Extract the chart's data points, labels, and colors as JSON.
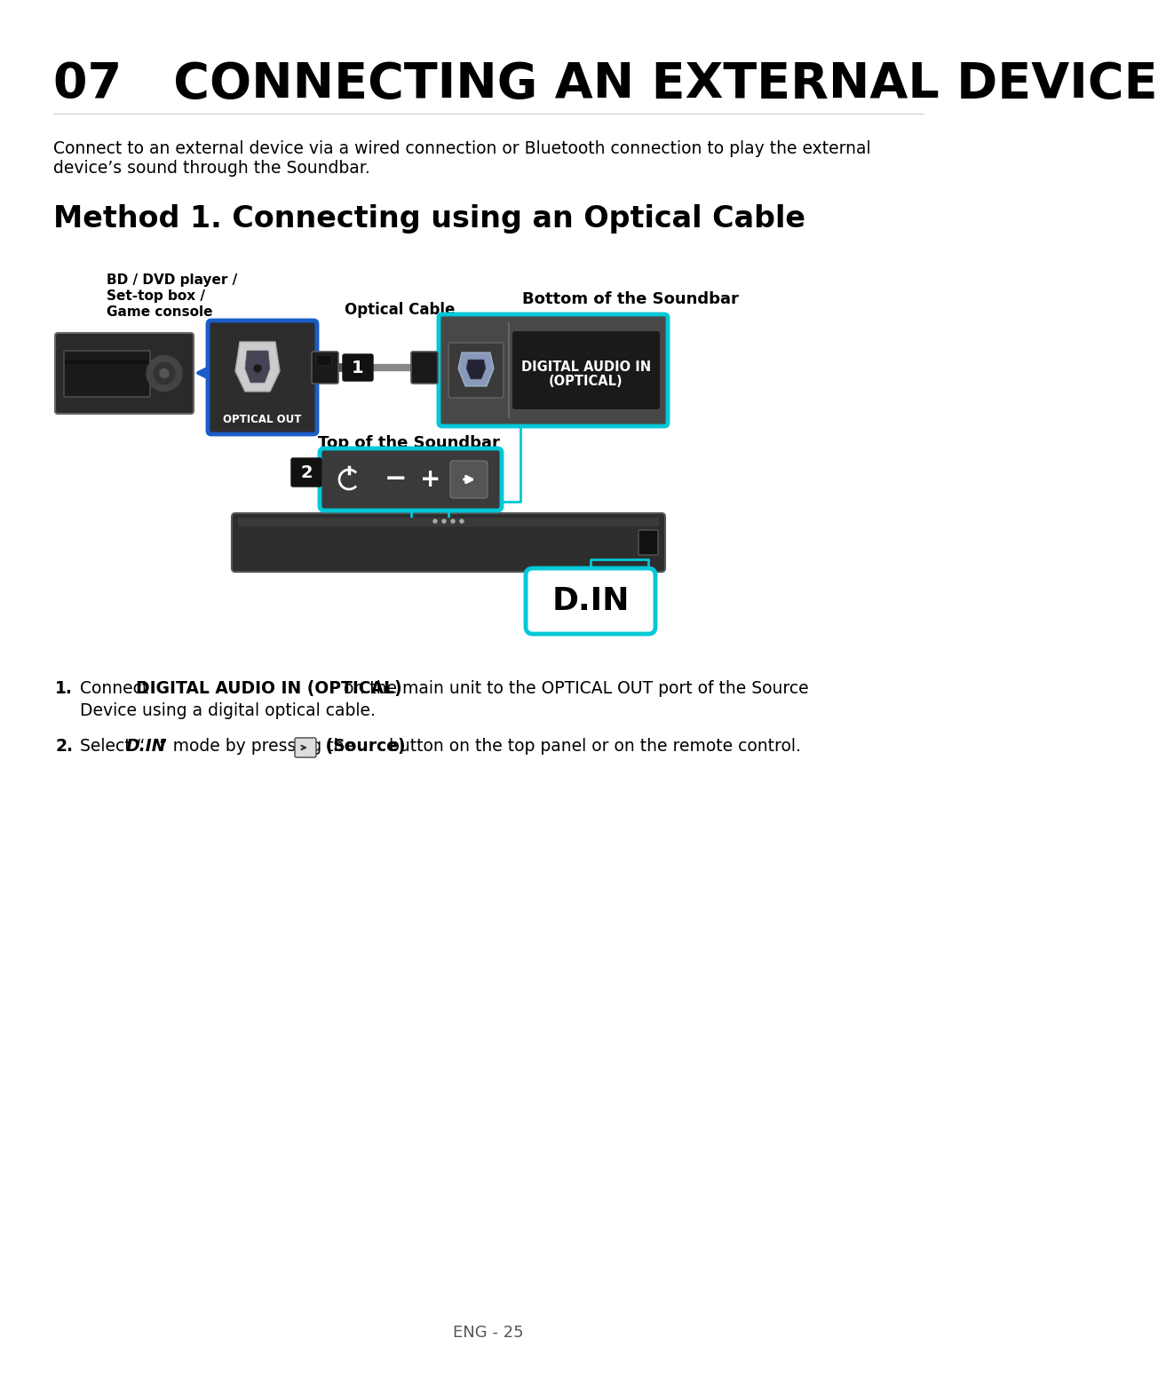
{
  "title": "07   CONNECTING AN EXTERNAL DEVICE",
  "subtitle_line1": "Connect to an external device via a wired connection or Bluetooth connection to play the external",
  "subtitle_line2": "device’s sound through the Soundbar.",
  "method_title": "Method 1. Connecting using an Optical Cable",
  "label_bd_line1": "BD / DVD player /",
  "label_bd_line2": "Set-top box /",
  "label_bd_line3": "Game console",
  "label_optical_cable": "Optical Cable",
  "label_bottom_soundbar": "Bottom of the Soundbar",
  "label_top_soundbar": "Top of the Soundbar",
  "label_optical_out": "OPTICAL OUT",
  "label_digital_audio_line1": "DIGITAL AUDIO IN",
  "label_digital_audio_line2": "(OPTICAL)",
  "label_din": "D.IN",
  "footer": "ENG - 25",
  "bg_color": "#ffffff",
  "title_color": "#000000",
  "text_color": "#000000",
  "cyan_color": "#00c8d7",
  "blue_color": "#1a5dc8",
  "dark_gray": "#3a3a3a",
  "medium_gray": "#555555",
  "light_gray": "#888888"
}
